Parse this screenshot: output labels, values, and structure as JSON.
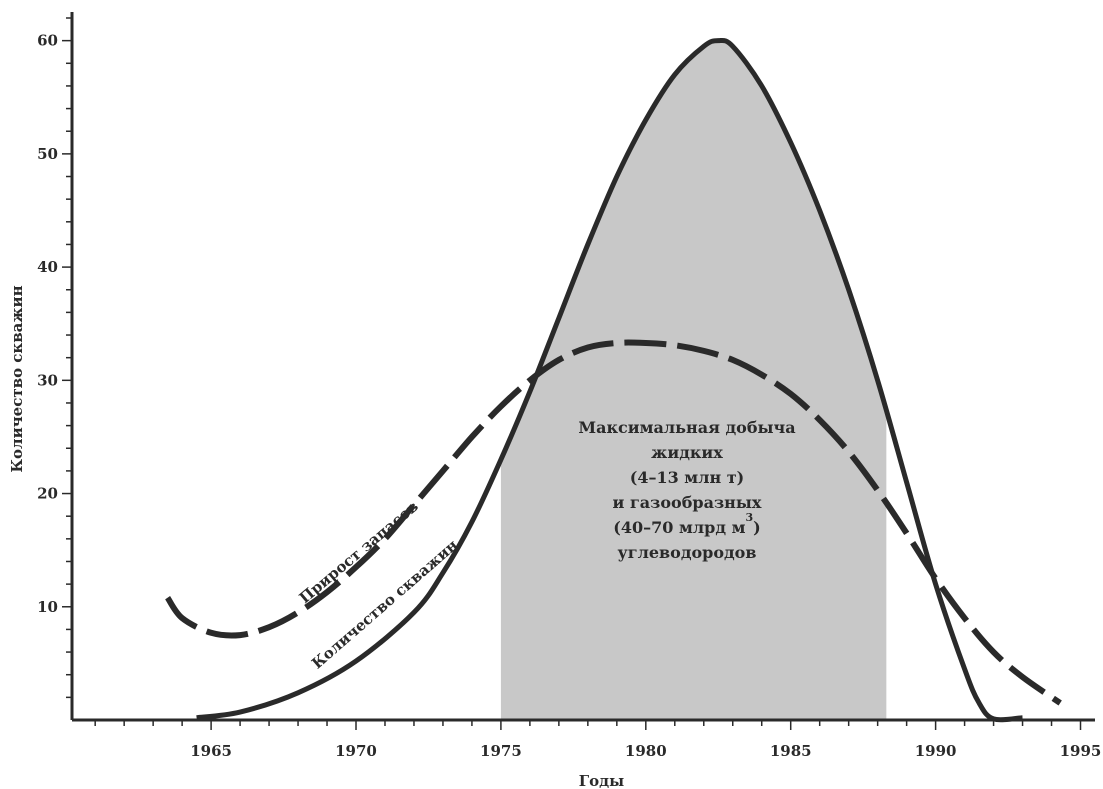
{
  "chart_data": {
    "type": "line",
    "xlabel": "Годы",
    "ylabel": "Количество скважин",
    "xlim": [
      1960.2,
      1995.5
    ],
    "ylim": [
      0,
      62
    ],
    "xticks": [
      1965,
      1970,
      1975,
      1980,
      1985,
      1990,
      1995
    ],
    "yticks": [
      10,
      20,
      30,
      40,
      50,
      60
    ],
    "grid": false,
    "shaded_region": {
      "x": [
        1975,
        1988.3
      ],
      "label_lines": [
        "Максимальная добыча",
        "жидких",
        "(4–13 млн т)",
        "и газообразных",
        "(40–70 млрд м",
        "углеводородов"
      ],
      "superscript": "3",
      "superscript_suffix": ")",
      "color": "#c8c8c8"
    },
    "series": [
      {
        "name": "Количество скважин",
        "style": "solid",
        "color": "#2a2a2a",
        "x": [
          1964.5,
          1966,
          1968,
          1970,
          1972,
          1973,
          1974,
          1975,
          1976,
          1977,
          1978,
          1979,
          1980,
          1981,
          1982,
          1982.5,
          1983,
          1984,
          1985,
          1986,
          1987,
          1988,
          1989,
          1990,
          1991,
          1991.5,
          1992,
          1993
        ],
        "y": [
          0.2,
          0.7,
          2.4,
          5.2,
          9.5,
          13,
          17.5,
          23,
          29,
          35.5,
          42,
          48,
          53,
          57,
          59.5,
          60,
          59.5,
          56,
          51,
          45,
          38,
          30,
          21,
          12,
          4.5,
          1.5,
          0.1,
          0.2
        ]
      },
      {
        "name": "Прирост запасов",
        "style": "dashed",
        "color": "#2a2a2a",
        "x": [
          1963.5,
          1964,
          1965,
          1966,
          1967,
          1968,
          1969,
          1970,
          1971,
          1972,
          1973,
          1974,
          1975,
          1976,
          1977,
          1978,
          1979,
          1980,
          1981,
          1982,
          1983,
          1984,
          1985,
          1986,
          1987,
          1988,
          1989,
          1990,
          1991,
          1992,
          1993,
          1994.3
        ],
        "y": [
          10.8,
          9,
          7.7,
          7.5,
          8.2,
          9.5,
          11.3,
          13.5,
          16,
          19,
          22,
          25,
          27.7,
          30,
          31.8,
          32.9,
          33.3,
          33.3,
          33.1,
          32.6,
          31.8,
          30.5,
          28.8,
          26.5,
          23.7,
          20.3,
          16.5,
          12.5,
          9,
          6,
          3.8,
          1.5
        ]
      }
    ]
  }
}
